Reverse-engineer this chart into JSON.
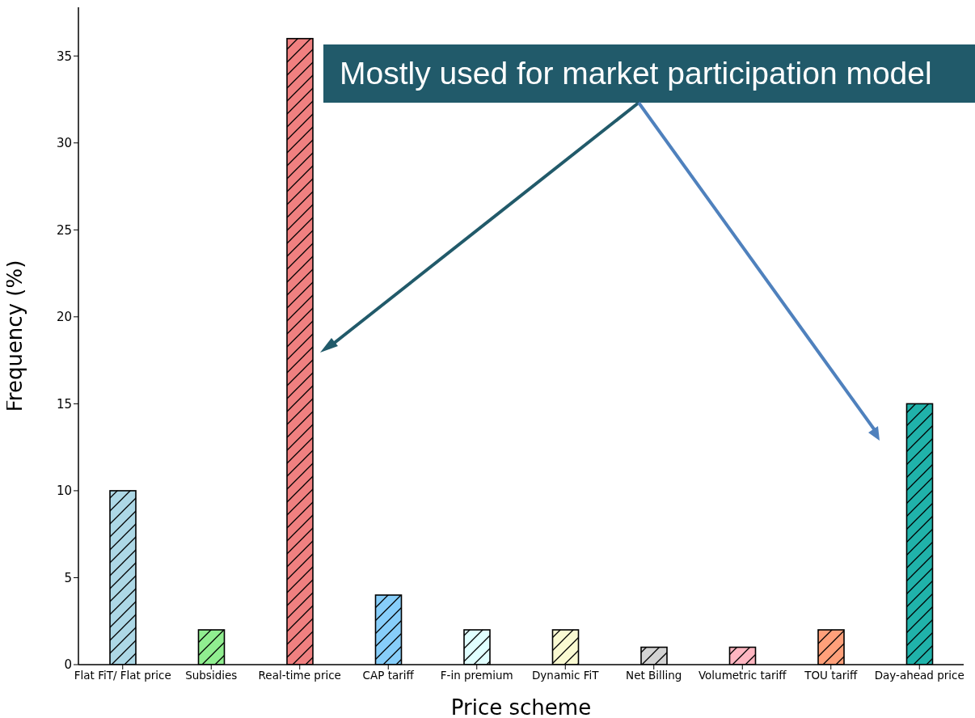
{
  "chart_data": {
    "type": "bar",
    "xlabel": "Price scheme",
    "ylabel": "Frequency (%)",
    "categories": [
      "Flat FiT/ Flat price",
      "Subsidies",
      "Real-time price",
      "CAP tariff",
      "F-in premium",
      "Dynamic FiT",
      "Net Billing",
      "Volumetric tariff",
      "TOU tariff",
      "Day-ahead price"
    ],
    "values": [
      10,
      2,
      36,
      4,
      2,
      2,
      1,
      1,
      2,
      15
    ],
    "colors": [
      "#add8e6",
      "#90ee90",
      "#f08080",
      "#87cefa",
      "#e0ffff",
      "#fafad2",
      "#d3d3d3",
      "#ffb6c1",
      "#ffa07a",
      "#20b2aa"
    ],
    "ylim": [
      0,
      37.8
    ],
    "yticks": [
      0,
      5,
      10,
      15,
      20,
      25,
      30,
      35
    ],
    "grid": false,
    "legend": false,
    "annotations": [
      "Mostly used for market participation model"
    ]
  }
}
